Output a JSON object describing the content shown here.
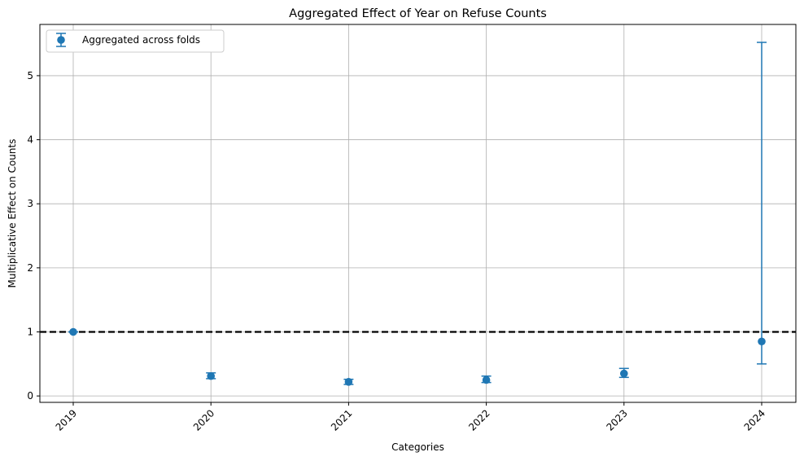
{
  "chart_data": {
    "type": "scatter",
    "title": "Aggregated Effect of Year on Refuse Counts",
    "xlabel": "Categories",
    "ylabel": "Multiplicative Effect on Counts",
    "categories": [
      "2019",
      "2020",
      "2021",
      "2022",
      "2023",
      "2024"
    ],
    "series": [
      {
        "name": "Aggregated across folds",
        "values": [
          1.0,
          0.31,
          0.22,
          0.25,
          0.35,
          0.85
        ],
        "lower": [
          1.0,
          0.27,
          0.18,
          0.21,
          0.29,
          0.5
        ],
        "upper": [
          1.0,
          0.36,
          0.26,
          0.31,
          0.43,
          5.52
        ],
        "color": "#1f77b4"
      }
    ],
    "reference_line": {
      "y": 1,
      "style": "dashed",
      "color": "#000000"
    },
    "ylim": [
      -0.1,
      5.8
    ],
    "yticks": [
      0,
      1,
      2,
      3,
      4,
      5
    ],
    "grid": true,
    "legend_position": "upper-left"
  }
}
